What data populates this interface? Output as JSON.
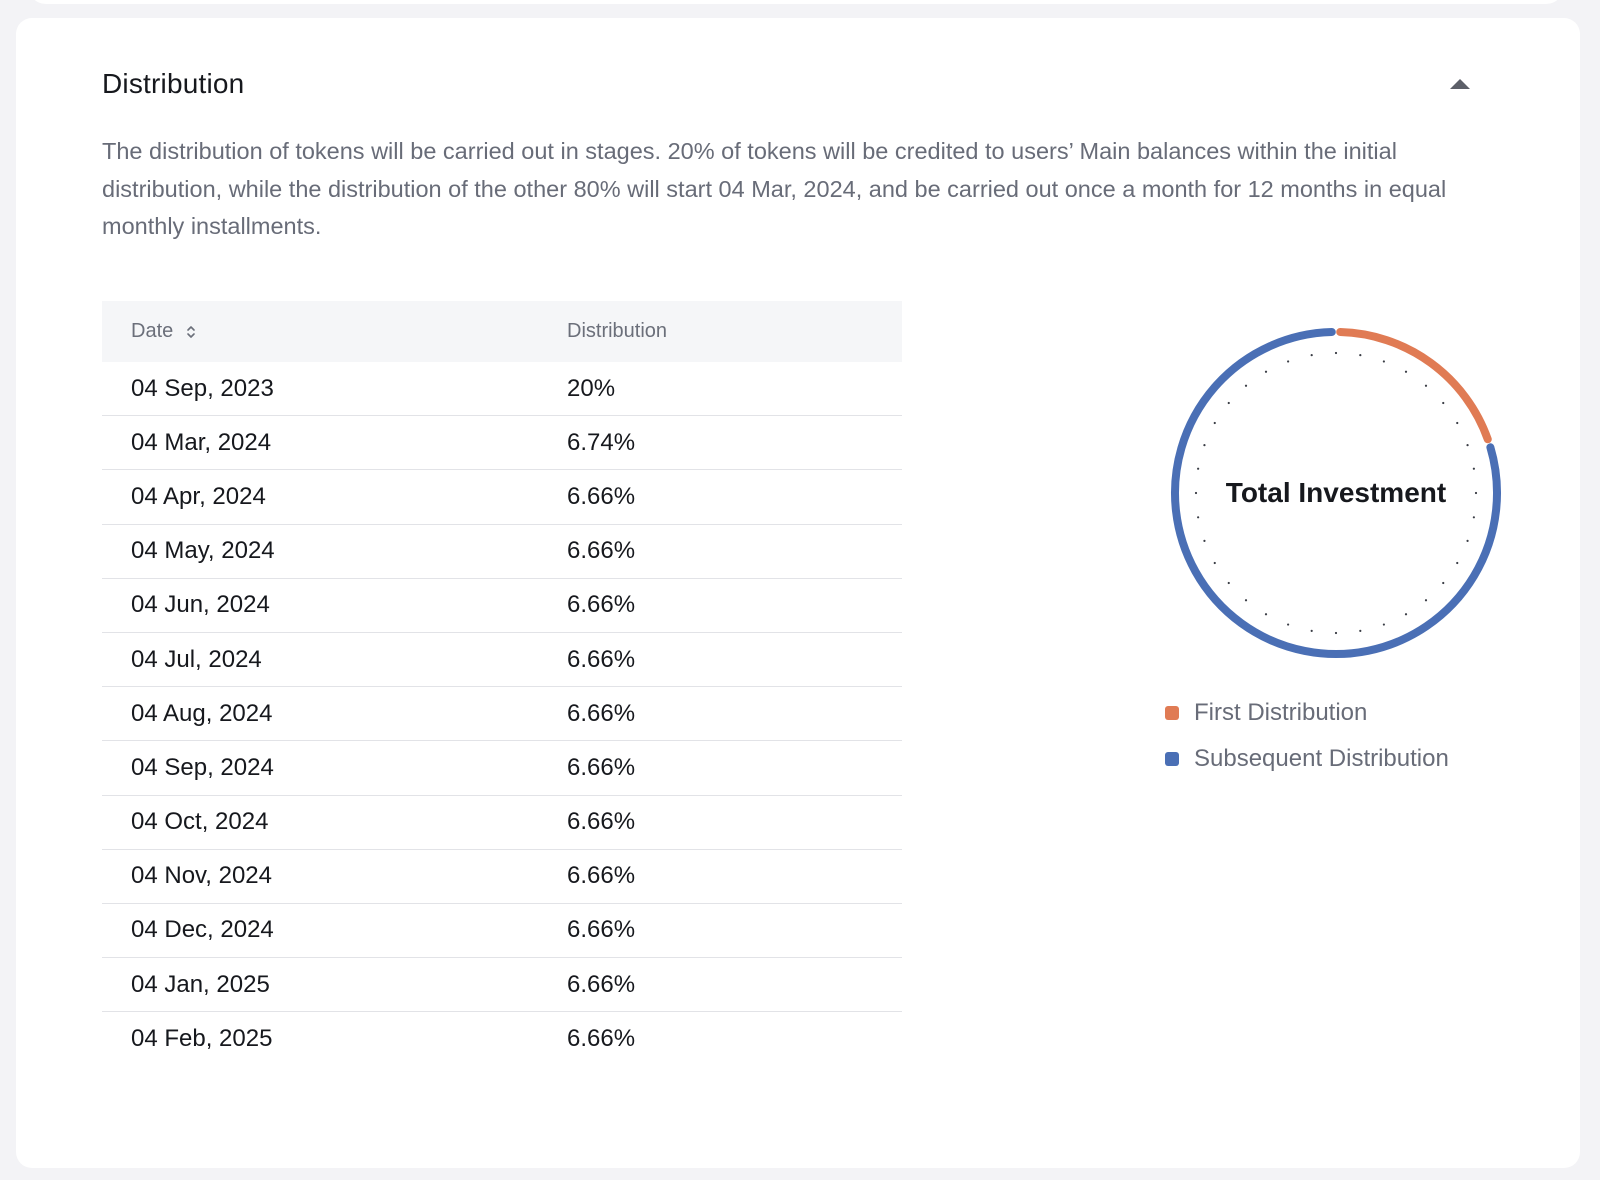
{
  "section": {
    "title": "Distribution",
    "collapse_icon": "caret-up-icon",
    "description": "The distribution of tokens will be carried out in stages. 20% of tokens will be credited to users’ Main balances within the initial distribution, while the distribution of the other 80% will start 04 Mar, 2024, and be carried out once a month for 12 months in equal monthly installments."
  },
  "table": {
    "headers": {
      "date": "Date",
      "distribution": "Distribution"
    },
    "sort_icon": "sort-icon",
    "rows": [
      {
        "date": "04 Sep, 2023",
        "distribution": "20%"
      },
      {
        "date": "04 Mar, 2024",
        "distribution": "6.74%"
      },
      {
        "date": "04 Apr, 2024",
        "distribution": "6.66%"
      },
      {
        "date": "04 May, 2024",
        "distribution": "6.66%"
      },
      {
        "date": "04 Jun, 2024",
        "distribution": "6.66%"
      },
      {
        "date": "04 Jul, 2024",
        "distribution": "6.66%"
      },
      {
        "date": "04 Aug, 2024",
        "distribution": "6.66%"
      },
      {
        "date": "04 Sep, 2024",
        "distribution": "6.66%"
      },
      {
        "date": "04 Oct, 2024",
        "distribution": "6.66%"
      },
      {
        "date": "04 Nov, 2024",
        "distribution": "6.66%"
      },
      {
        "date": "04 Dec, 2024",
        "distribution": "6.66%"
      },
      {
        "date": "04 Jan, 2025",
        "distribution": "6.66%"
      },
      {
        "date": "04 Feb, 2025",
        "distribution": "6.66%"
      }
    ]
  },
  "chart_data": {
    "type": "pie",
    "center_label": "Total Investment",
    "series": [
      {
        "name": "First Distribution",
        "value": 20,
        "color": "#e07b54"
      },
      {
        "name": "Subsequent Distribution",
        "value": 80,
        "color": "#4a6fb5"
      }
    ]
  }
}
